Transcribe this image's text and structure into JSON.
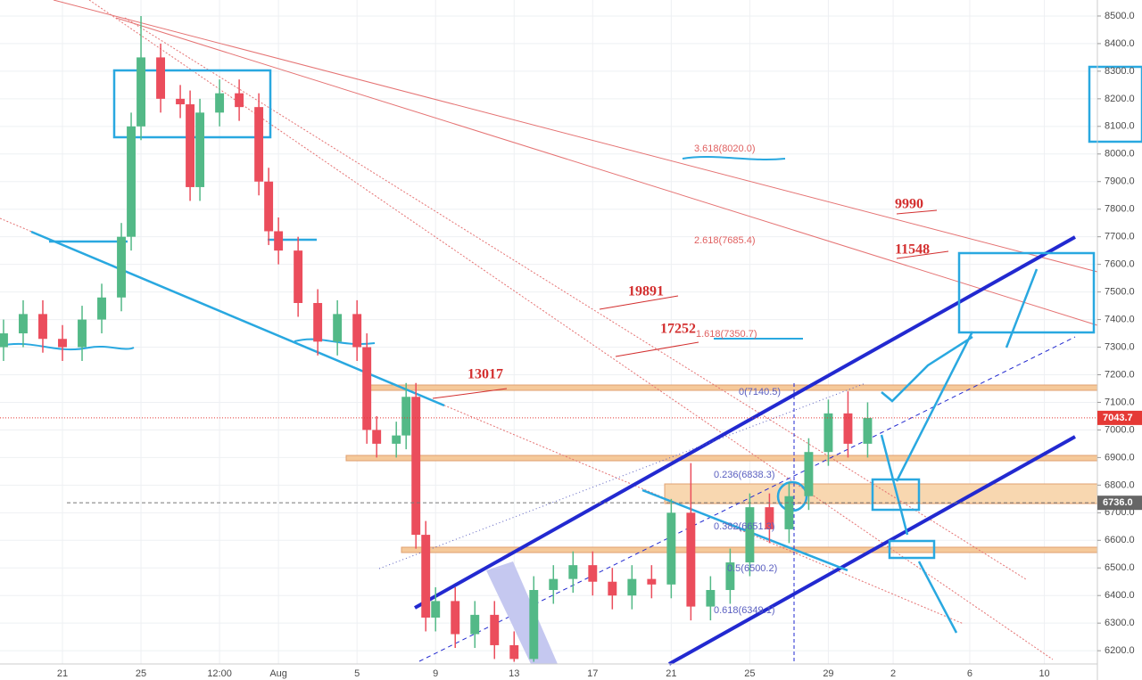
{
  "chart_data": {
    "type": "candlestick",
    "x": [
      -3,
      -2,
      -1,
      0,
      1,
      2,
      3,
      3.5,
      4,
      5,
      6,
      6.5,
      7,
      8,
      9,
      10,
      10.5,
      11,
      12,
      13,
      14,
      15,
      15.5,
      16,
      17,
      17.5,
      18,
      18.5,
      19,
      20,
      21,
      22,
      23,
      24,
      25,
      26,
      27,
      28,
      29,
      30,
      31,
      32,
      33,
      34,
      35,
      36,
      37,
      38,
      39,
      40,
      41
    ],
    "open": [
      7300,
      7350,
      7420,
      7330,
      7300,
      7400,
      7480,
      7700,
      8100,
      8350,
      8200,
      8180,
      7880,
      8150,
      8220,
      8170,
      7900,
      7720,
      7650,
      7460,
      7320,
      7420,
      7300,
      7000,
      6950,
      6980,
      7120,
      6620,
      6320,
      6380,
      6260,
      6330,
      6220,
      6170,
      6420,
      6460,
      6510,
      6450,
      6400,
      6460,
      6440,
      6700,
      6360,
      6420,
      6520,
      6720,
      6640,
      6760,
      6920,
      7060,
      6950
    ],
    "high": [
      7400,
      7470,
      7470,
      7380,
      7450,
      7530,
      7750,
      8150,
      8500,
      8400,
      8250,
      8230,
      8200,
      8270,
      8270,
      8220,
      7950,
      7770,
      7700,
      7510,
      7470,
      7470,
      7350,
      7050,
      7030,
      7170,
      7170,
      6670,
      6430,
      6430,
      6380,
      6380,
      6270,
      6470,
      6510,
      6560,
      6560,
      6500,
      6510,
      6510,
      6750,
      6880,
      6470,
      6570,
      6770,
      6770,
      6810,
      6970,
      7110,
      7140,
      7100
    ],
    "low": [
      7250,
      7300,
      7280,
      7250,
      7250,
      7350,
      7430,
      7650,
      8050,
      8150,
      8130,
      7830,
      7830,
      8100,
      8120,
      7850,
      7670,
      7600,
      7410,
      7270,
      7270,
      7250,
      6950,
      6900,
      6900,
      6930,
      6570,
      6270,
      6270,
      6210,
      6210,
      6170,
      6160,
      6160,
      6370,
      6410,
      6400,
      6350,
      6350,
      6390,
      6390,
      6310,
      6310,
      6370,
      6470,
      6590,
      6590,
      6710,
      6870,
      6900,
      6900
    ],
    "close": [
      7350,
      7420,
      7330,
      7300,
      7400,
      7480,
      7700,
      8100,
      8350,
      8200,
      8180,
      7880,
      8150,
      8220,
      8170,
      7900,
      7720,
      7650,
      7460,
      7320,
      7420,
      7300,
      7000,
      6950,
      6980,
      7120,
      6620,
      6320,
      6380,
      6260,
      6330,
      6220,
      6170,
      6420,
      6460,
      6510,
      6450,
      6400,
      6460,
      6440,
      6700,
      6360,
      6420,
      6520,
      6720,
      6640,
      6760,
      6920,
      7060,
      6950,
      7043.7
    ],
    "up_color": "#53b987",
    "down_color": "#eb4d5c",
    "xlim": [
      -3.18,
      52.7
    ],
    "ylim": [
      6152,
      8558
    ],
    "xticks": [
      {
        "value": 0,
        "label": "21"
      },
      {
        "value": 4,
        "label": "25"
      },
      {
        "value": 8,
        "label": "12:00"
      },
      {
        "value": 11,
        "label": "Aug"
      },
      {
        "value": 15,
        "label": "5"
      },
      {
        "value": 19,
        "label": "9"
      },
      {
        "value": 23,
        "label": "13"
      },
      {
        "value": 27,
        "label": "17"
      },
      {
        "value": 31,
        "label": "21"
      },
      {
        "value": 35,
        "label": "25"
      },
      {
        "value": 39,
        "label": "29"
      },
      {
        "value": 42.3,
        "label": "2"
      },
      {
        "value": 46.2,
        "label": "6"
      },
      {
        "value": 50,
        "label": "10"
      }
    ],
    "yticks": [
      {
        "value": 6200,
        "label": "6200.0"
      },
      {
        "value": 6300,
        "label": "6300.0"
      },
      {
        "value": 6400,
        "label": "6400.0"
      },
      {
        "value": 6500,
        "label": "6500.0"
      },
      {
        "value": 6600,
        "label": "6600.0"
      },
      {
        "value": 6700,
        "label": "6700.0"
      },
      {
        "value": 6800,
        "label": "6800.0"
      },
      {
        "value": 6900,
        "label": "6900.0"
      },
      {
        "value": 7000,
        "label": "7000.0"
      },
      {
        "value": 7100,
        "label": "7100.0"
      },
      {
        "value": 7200,
        "label": "7200.0"
      },
      {
        "value": 7300,
        "label": "7300.0"
      },
      {
        "value": 7400,
        "label": "7400.0"
      },
      {
        "value": 7500,
        "label": "7500.0"
      },
      {
        "value": 7600,
        "label": "7600.0"
      },
      {
        "value": 7700,
        "label": "7700.0"
      },
      {
        "value": 7800,
        "label": "7800.0"
      },
      {
        "value": 7900,
        "label": "7900.0"
      },
      {
        "value": 8000,
        "label": "8000.0"
      },
      {
        "value": 8100,
        "label": "8100.0"
      },
      {
        "value": 8200,
        "label": "8200.0"
      },
      {
        "value": 8300,
        "label": "8300.0"
      },
      {
        "value": 8400,
        "label": "8400.0"
      },
      {
        "value": 8500,
        "label": "8500.0"
      }
    ],
    "grid": true,
    "last_price": 7043.7,
    "marked_price": {
      "value": 6736,
      "label": "6736.0"
    },
    "fib_labels": [
      "3.618(8020.0)",
      "2.618(7685.4)",
      "1.618(7350.7)",
      "0(7140.5)",
      "0.236(6838.3)",
      "0.382(6651.3)",
      "0.5(6500.2)",
      "0.618(6349.1)"
    ],
    "red_labels": [
      "9990",
      "11548",
      "19891",
      "17252",
      "13017"
    ]
  }
}
